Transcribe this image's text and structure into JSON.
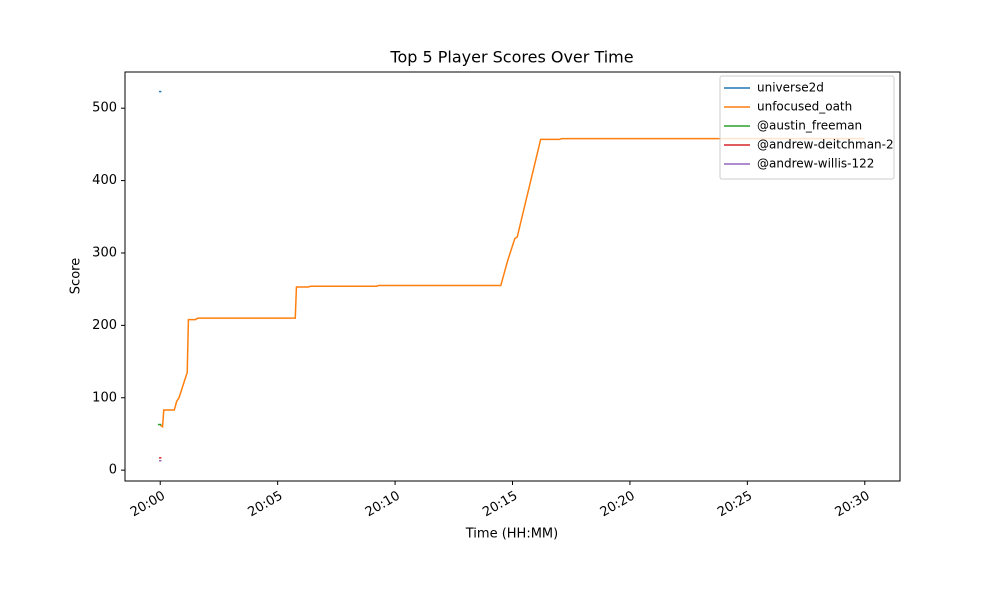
{
  "chart_data": {
    "type": "line",
    "title": "Top 5 Player Scores Over Time",
    "xlabel": "Time (HH:MM)",
    "ylabel": "Score",
    "xlim": [
      -1.5,
      31.5
    ],
    "ylim": [
      -15,
      550
    ],
    "xticks": [
      {
        "value": 0,
        "label": "20:00"
      },
      {
        "value": 5,
        "label": "20:05"
      },
      {
        "value": 10,
        "label": "20:10"
      },
      {
        "value": 15,
        "label": "20:15"
      },
      {
        "value": 20,
        "label": "20:20"
      },
      {
        "value": 25,
        "label": "20:25"
      },
      {
        "value": 30,
        "label": "20:30"
      }
    ],
    "yticks": [
      0,
      100,
      200,
      300,
      400,
      500
    ],
    "legend": "upper right",
    "series": [
      {
        "name": "universe2d",
        "color": "#1f77b4",
        "x": [
          -0.05,
          0.05
        ],
        "values": [
          523,
          523
        ]
      },
      {
        "name": "unfocused_oath",
        "color": "#ff7f0e",
        "x": [
          0,
          0.1,
          0.15,
          0.6,
          0.7,
          0.8,
          0.9,
          1.0,
          1.1,
          1.15,
          1.2,
          1.5,
          1.6,
          5.75,
          5.8,
          6.3,
          6.4,
          9.2,
          9.3,
          14.5,
          14.8,
          15.1,
          15.2,
          16.2,
          17.0,
          17.1,
          30
        ],
        "values": [
          62,
          60,
          83,
          83,
          95,
          100,
          110,
          120,
          130,
          135,
          208,
          208,
          210,
          210,
          253,
          253,
          254,
          254,
          255,
          255,
          290,
          320,
          322,
          457,
          457,
          458,
          458
        ]
      },
      {
        "name": "@austin_freeman",
        "color": "#2ca02c",
        "x": [
          -0.1,
          0.05
        ],
        "values": [
          63,
          63
        ]
      },
      {
        "name": "@andrew-deitchman-2",
        "color": "#d62728",
        "x": [
          -0.05,
          0.05
        ],
        "values": [
          17,
          17
        ]
      },
      {
        "name": "@andrew-willis-122",
        "color": "#9467bd",
        "x": [
          -0.05,
          0.05
        ],
        "values": [
          13,
          13
        ]
      }
    ]
  }
}
